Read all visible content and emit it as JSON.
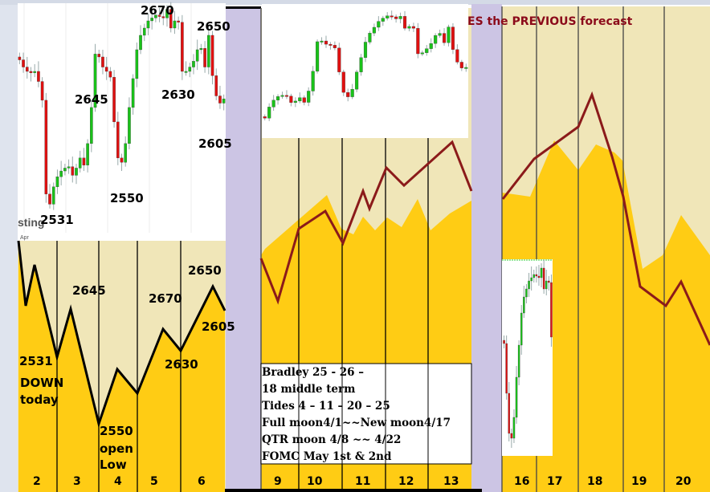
{
  "title": "ES the PREVIOUS forecast",
  "colors": {
    "beige": "#f0e6b8",
    "yellow": "#ffcc14",
    "purple": "#ccc5e4",
    "forecast_line": "#8b1a1a",
    "up": "#19c219",
    "down": "#e01010"
  },
  "chart_data": [
    {
      "type": "candlestick",
      "name_hint": "left price chart",
      "closes": [
        2633,
        2628,
        2625,
        2624,
        2625,
        2618,
        2605,
        2540,
        2533,
        2545,
        2552,
        2556,
        2558,
        2559,
        2553,
        2558,
        2565,
        2560,
        2575,
        2600,
        2637,
        2635,
        2628,
        2625,
        2621,
        2590,
        2565,
        2562,
        2575,
        2600,
        2620,
        2640,
        2650,
        2655,
        2660,
        2662,
        2664,
        2663,
        2662,
        2668,
        2655,
        2660,
        2659,
        2625,
        2625,
        2628,
        2632,
        2640,
        2641,
        2628,
        2650,
        2622,
        2608,
        2603,
        2606
      ],
      "x_tick_labels": [
        "Apr"
      ],
      "watermark": "sting",
      "annotations": [
        "2670",
        "2650",
        "2645",
        "2630",
        "2605",
        "2550",
        "2531"
      ]
    },
    {
      "type": "line",
      "name_hint": "week 1 forecast",
      "categories": [
        "2",
        "3",
        "4",
        "5",
        "6"
      ],
      "annotations": [
        {
          "text": "2531"
        },
        {
          "text": "DOWN"
        },
        {
          "text": "today"
        },
        {
          "text": "2645"
        },
        {
          "text": "2550"
        },
        {
          "text": "open"
        },
        {
          "text": "Low"
        },
        {
          "text": "2670"
        },
        {
          "text": "2630"
        },
        {
          "text": "2650"
        },
        {
          "text": "2605"
        }
      ]
    },
    {
      "type": "line",
      "name_hint": "week 2 forecast",
      "categories": [
        "9",
        "10",
        "11",
        "12",
        "13"
      ],
      "notes": [
        "Bradley 25 - 26 –",
        "18 middle term",
        "Tides 4 – 11 – 20 – 25",
        "Full moon4/1~~New moon4/17",
        "QTR moon 4/8 ~~ 4/22",
        "FOMC May 1st & 2nd"
      ]
    },
    {
      "type": "line",
      "name_hint": "week 3 forecast",
      "categories": [
        "16",
        "17",
        "18",
        "19",
        "20"
      ]
    }
  ]
}
